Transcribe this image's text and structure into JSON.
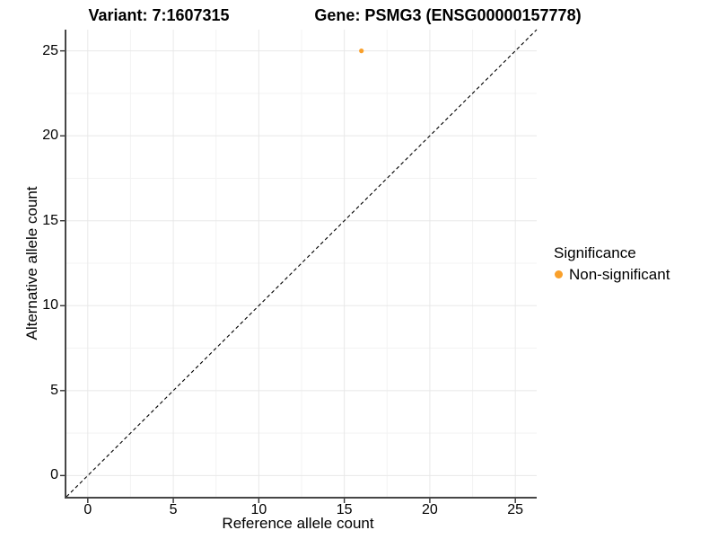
{
  "titles": {
    "variant": "Variant: 7:1607315",
    "gene": "Gene: PSMG3 (ENSG00000157778)"
  },
  "chart_data": {
    "type": "scatter",
    "xlabel": "Reference allele count",
    "ylabel": "Alternative allele count",
    "xlim": [
      -1.25,
      26.25
    ],
    "ylim": [
      -1.25,
      26.25
    ],
    "x_ticks": [
      0,
      5,
      10,
      15,
      20,
      25
    ],
    "y_ticks": [
      0,
      5,
      10,
      15,
      20,
      25
    ],
    "x_minor_ticks": [
      2.5,
      7.5,
      12.5,
      17.5,
      22.5
    ],
    "y_minor_ticks": [
      2.5,
      7.5,
      12.5,
      17.5,
      22.5
    ],
    "grid": "major+minor",
    "points": [
      {
        "x": 16,
        "y": 25,
        "series": "Non-significant"
      }
    ],
    "reference_line": {
      "type": "identity",
      "style": "dashed",
      "from": [
        -1.25,
        -1.25
      ],
      "to": [
        26.25,
        26.25
      ]
    },
    "legend": {
      "title": "Significance",
      "position": "right",
      "entries": [
        {
          "label": "Non-significant",
          "color": "#F9A02B"
        }
      ]
    }
  },
  "colors": {
    "point": "#F9A02B",
    "grid_major": "#E8E8E8",
    "grid_minor": "#F3F3F3",
    "axis_line": "#464646",
    "tick": "#333333",
    "dashed_line": "#000000"
  }
}
